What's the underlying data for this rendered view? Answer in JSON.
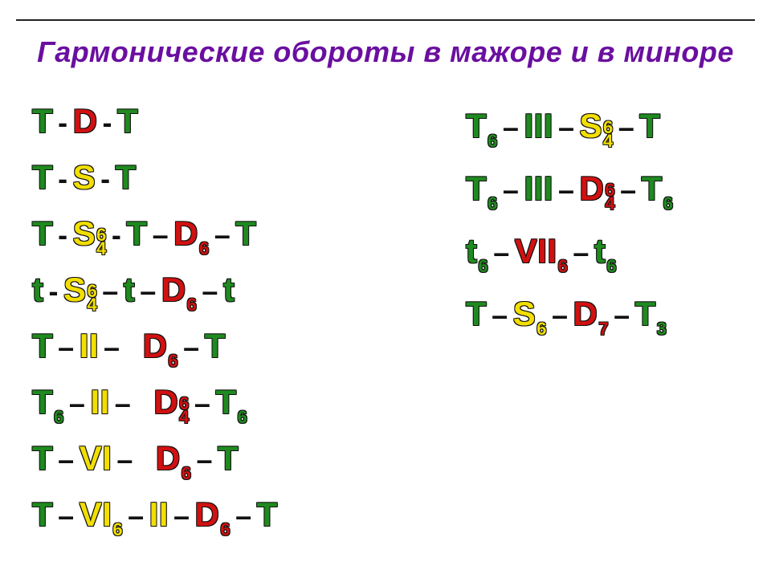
{
  "colors": {
    "title": "#6a0fa0",
    "green": "#1f8a1f",
    "yellow": "#f2df00",
    "red": "#d11111",
    "dash": "#111111",
    "rule": "#222222",
    "bg": "#ffffff"
  },
  "fontsizes": {
    "title": 36,
    "token": 42,
    "sub": 22,
    "dash": 36
  },
  "title": "Гармонические обороты в мажоре и в миноре",
  "columns": {
    "left": [
      [
        {
          "t": "T",
          "c": "green"
        },
        {
          "t": "-",
          "c": "dash",
          "gap": "sm"
        },
        {
          "t": "D",
          "c": "red"
        },
        {
          "t": "-",
          "c": "dash",
          "gap": "sm"
        },
        {
          "t": "T",
          "c": "green"
        }
      ],
      [
        {
          "t": "T",
          "c": "green"
        },
        {
          "t": "-",
          "c": "dash",
          "gap": "sm"
        },
        {
          "t": "S",
          "c": "yellow"
        },
        {
          "t": "-",
          "c": "dash",
          "gap": "sm"
        },
        {
          "t": "T",
          "c": "green"
        }
      ],
      [
        {
          "t": "T",
          "c": "green"
        },
        {
          "t": "-",
          "c": "dash",
          "gap": "sm"
        },
        {
          "t": "S",
          "c": "yellow",
          "sub": [
            "6",
            "4"
          ]
        },
        {
          "t": "-",
          "c": "dash",
          "gap": "sm"
        },
        {
          "t": "T",
          "c": "green"
        },
        {
          "t": "–",
          "c": "dash"
        },
        {
          "t": "D",
          "c": "red",
          "sub": [
            "6"
          ]
        },
        {
          "t": "–",
          "c": "dash"
        },
        {
          "t": "T",
          "c": "green"
        }
      ],
      [
        {
          "t": "t",
          "c": "green"
        },
        {
          "t": "-",
          "c": "dash",
          "gap": "sm"
        },
        {
          "t": "S",
          "c": "yellow",
          "sub": [
            "6",
            "4"
          ]
        },
        {
          "t": "–",
          "c": "dash"
        },
        {
          "t": "t",
          "c": "green"
        },
        {
          "t": "–",
          "c": "dash"
        },
        {
          "t": "D",
          "c": "red",
          "sub": [
            "6"
          ]
        },
        {
          "t": "–",
          "c": "dash"
        },
        {
          "t": "t",
          "c": "green"
        }
      ],
      [
        {
          "t": "T",
          "c": "green"
        },
        {
          "t": "–",
          "c": "dash"
        },
        {
          "t": "II",
          "c": "yellow"
        },
        {
          "t": "–",
          "c": "dash",
          "gap": "md"
        },
        {
          "t": "D",
          "c": "red",
          "sub": [
            "6"
          ]
        },
        {
          "t": "–",
          "c": "dash"
        },
        {
          "t": "T",
          "c": "green"
        }
      ],
      [
        {
          "t": "T",
          "c": "green",
          "sub": [
            "6"
          ]
        },
        {
          "t": "–",
          "c": "dash"
        },
        {
          "t": "II",
          "c": "yellow"
        },
        {
          "t": "–",
          "c": "dash",
          "gap": "md"
        },
        {
          "t": "D",
          "c": "red",
          "sub": [
            "6",
            "4"
          ]
        },
        {
          "t": "–",
          "c": "dash"
        },
        {
          "t": "T",
          "c": "green",
          "sub": [
            "6"
          ]
        }
      ],
      [
        {
          "t": "T",
          "c": "green"
        },
        {
          "t": "–",
          "c": "dash"
        },
        {
          "t": "VI",
          "c": "yellow"
        },
        {
          "t": "–",
          "c": "dash",
          "gap": "md"
        },
        {
          "t": "D",
          "c": "red",
          "sub": [
            "6"
          ]
        },
        {
          "t": "–",
          "c": "dash"
        },
        {
          "t": "T",
          "c": "green"
        }
      ],
      [
        {
          "t": "T",
          "c": "green"
        },
        {
          "t": "–",
          "c": "dash"
        },
        {
          "t": "VI",
          "c": "yellow",
          "sub": [
            "6"
          ]
        },
        {
          "t": "–",
          "c": "dash"
        },
        {
          "t": "II",
          "c": "yellow"
        },
        {
          "t": "–",
          "c": "dash"
        },
        {
          "t": "D",
          "c": "red",
          "sub": [
            "6"
          ]
        },
        {
          "t": "–",
          "c": "dash"
        },
        {
          "t": "T",
          "c": "green"
        }
      ]
    ],
    "right": [
      [
        {
          "t": "T",
          "c": "green",
          "sub": [
            "6"
          ]
        },
        {
          "t": "–",
          "c": "dash"
        },
        {
          "t": "III",
          "c": "green"
        },
        {
          "t": "–",
          "c": "dash"
        },
        {
          "t": "S",
          "c": "yellow",
          "sub": [
            "6",
            "4"
          ]
        },
        {
          "t": "–",
          "c": "dash"
        },
        {
          "t": "T",
          "c": "green"
        }
      ],
      [
        {
          "t": "T",
          "c": "green",
          "sub": [
            "6"
          ]
        },
        {
          "t": "–",
          "c": "dash"
        },
        {
          "t": "III",
          "c": "green"
        },
        {
          "t": "–",
          "c": "dash"
        },
        {
          "t": "D",
          "c": "red",
          "sub": [
            "6",
            "4"
          ]
        },
        {
          "t": "–",
          "c": "dash"
        },
        {
          "t": "T",
          "c": "green",
          "sub": [
            "6"
          ]
        }
      ],
      [
        {
          "t": "t",
          "c": "green",
          "sub": [
            "6"
          ]
        },
        {
          "t": "–",
          "c": "dash"
        },
        {
          "t": "VII",
          "c": "red",
          "sub": [
            "6"
          ]
        },
        {
          "t": "–",
          "c": "dash"
        },
        {
          "t": "t",
          "c": "green",
          "sub": [
            "6"
          ]
        }
      ],
      [
        {
          "t": "T",
          "c": "green"
        },
        {
          "t": "–",
          "c": "dash"
        },
        {
          "t": "S",
          "c": "yellow",
          "sub": [
            "6"
          ]
        },
        {
          "t": "–",
          "c": "dash"
        },
        {
          "t": "D",
          "c": "red",
          "sub": [
            "7"
          ]
        },
        {
          "t": "–",
          "c": "dash"
        },
        {
          "t": "T",
          "c": "green",
          "sub": [
            "3"
          ]
        }
      ]
    ]
  }
}
